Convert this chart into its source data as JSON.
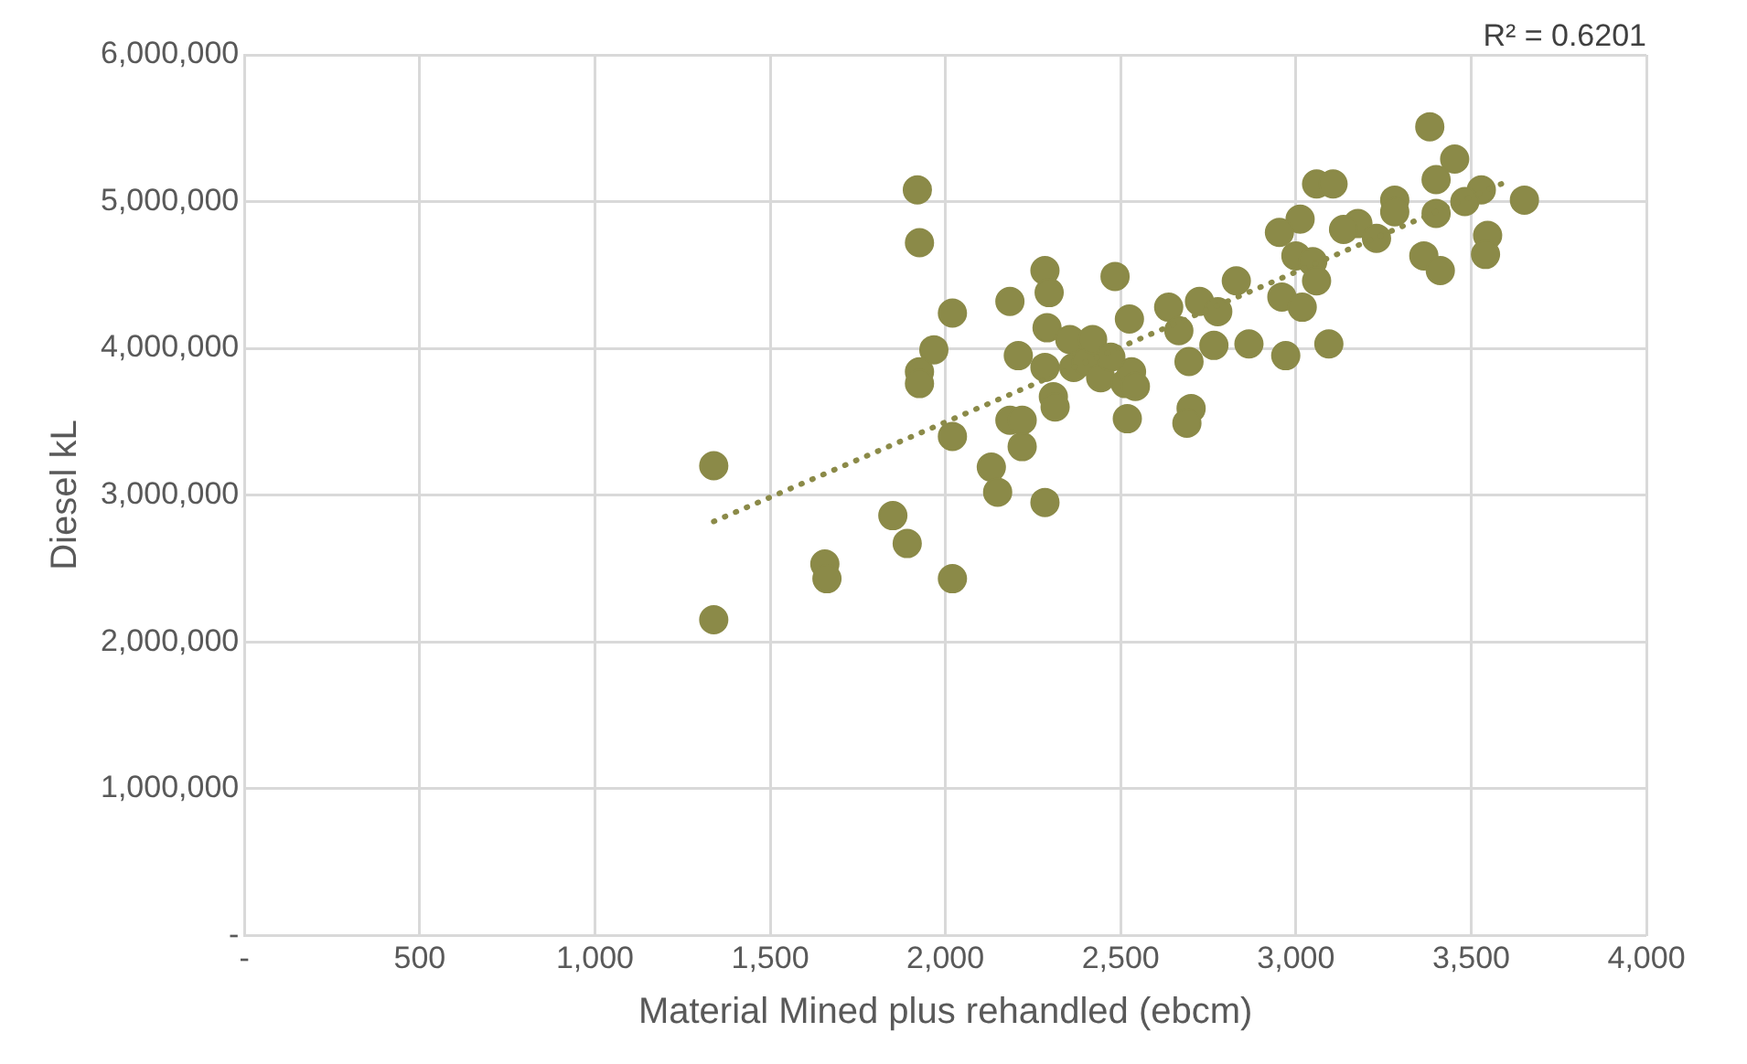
{
  "chart_data": {
    "type": "scatter",
    "xlabel": "Material Mined plus rehandled (ebcm)",
    "ylabel": "Diesel kL",
    "annotations": [
      "R² = 0.6201"
    ],
    "xlim": [
      0,
      4000
    ],
    "xticks": [
      {
        "value": 0,
        "label": "-"
      },
      500,
      {
        "value": 1000,
        "label": "1,000"
      },
      {
        "value": 1500,
        "label": "1,500"
      },
      {
        "value": 2000,
        "label": "2,000"
      },
      {
        "value": 2500,
        "label": "2,500"
      },
      {
        "value": 3000,
        "label": "3,000"
      },
      {
        "value": 3500,
        "label": "3,500"
      },
      {
        "value": 4000,
        "label": "4,000"
      }
    ],
    "ylim": [
      0,
      6000000
    ],
    "yticks": [
      {
        "value": 0,
        "label": "-"
      },
      {
        "value": 1000000,
        "label": "1,000,000"
      },
      {
        "value": 2000000,
        "label": "2,000,000"
      },
      {
        "value": 3000000,
        "label": "3,000,000"
      },
      {
        "value": 4000000,
        "label": "4,000,000"
      },
      {
        "value": 5000000,
        "label": "5,000,000"
      },
      {
        "value": 6000000,
        "label": "6,000,000"
      }
    ],
    "grid": true,
    "legend": false,
    "marker": "circle",
    "series": [
      {
        "type": "scatter",
        "color": "#8b8a48",
        "x": [
          1339,
          1339,
          1656,
          1662,
          1850,
          1891,
          1920,
          1926,
          2020,
          1967,
          1926,
          1926,
          2020,
          2020,
          2131,
          2149,
          2284,
          2184,
          2208,
          2184,
          2219,
          2219,
          2284,
          2296,
          2290,
          2284,
          2308,
          2313,
          2355,
          2366,
          2402,
          2420,
          2443,
          2484,
          2513,
          2525,
          2519,
          2531,
          2472,
          2542,
          3382,
          3453,
          3400,
          3529,
          3652,
          3482,
          3400,
          3282,
          3282,
          3059,
          3106,
          3177,
          3136,
          3230,
          3365,
          3412,
          3547,
          3541,
          3012,
          2953,
          3000,
          3048,
          3059,
          2960,
          3018,
          2830,
          2725,
          2637,
          2777,
          2666,
          2766,
          2695,
          2866,
          2971,
          3094,
          2701,
          2689
        ],
        "values": [
          3200000,
          2150000,
          2530000,
          2430000,
          2860000,
          2670000,
          5080000,
          4720000,
          2430000,
          3990000,
          3840000,
          3760000,
          4240000,
          3400000,
          3190000,
          3020000,
          2950000,
          4320000,
          3950000,
          3510000,
          3330000,
          3510000,
          4530000,
          4380000,
          4140000,
          3870000,
          3670000,
          3600000,
          4060000,
          3870000,
          3910000,
          4060000,
          3800000,
          4490000,
          3760000,
          4200000,
          3520000,
          3840000,
          3940000,
          3740000,
          5510000,
          5290000,
          5150000,
          5080000,
          5010000,
          5000000,
          4920000,
          5010000,
          4930000,
          5120000,
          5120000,
          4850000,
          4810000,
          4750000,
          4630000,
          4530000,
          4770000,
          4640000,
          4880000,
          4790000,
          4630000,
          4590000,
          4460000,
          4350000,
          4280000,
          4460000,
          4320000,
          4280000,
          4250000,
          4120000,
          4020000,
          3910000,
          4030000,
          3950000,
          4030000,
          3590000,
          3490000
        ]
      },
      {
        "type": "line",
        "color": "#8b8a48",
        "line_style": "dotted",
        "marker": "none",
        "x": [
          1339,
          3605
        ],
        "values": [
          2820000,
          5140000
        ]
      }
    ]
  }
}
